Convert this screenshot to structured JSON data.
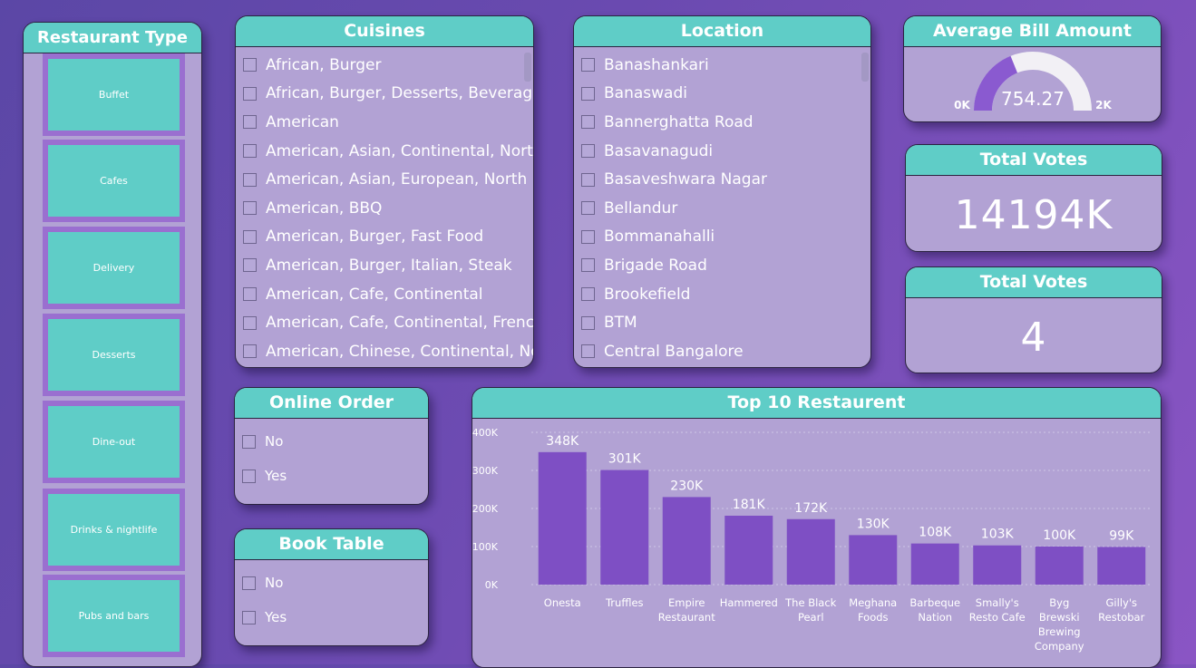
{
  "restaurant_type": {
    "title": "Restaurant Type",
    "items": [
      "Buffet",
      "Cafes",
      "Delivery",
      "Desserts",
      "Dine-out",
      "Drinks & nightlife",
      "Pubs and bars"
    ]
  },
  "cuisines": {
    "title": "Cuisines",
    "items": [
      "African, Burger",
      "African, Burger, Desserts, Beverages...",
      "American",
      "American, Asian, Continental, North...",
      "American, Asian, European, North I...",
      "American, BBQ",
      "American, Burger, Fast Food",
      "American, Burger, Italian, Steak",
      "American, Cafe, Continental",
      "American, Cafe, Continental, French,...",
      "American, Chinese, Continental, Nor..."
    ]
  },
  "location": {
    "title": "Location",
    "items": [
      "Banashankari",
      "Banaswadi",
      "Bannerghatta Road",
      "Basavanagudi",
      "Basaveshwara Nagar",
      "Bellandur",
      "Bommanahalli",
      "Brigade Road",
      "Brookefield",
      "BTM",
      "Central Bangalore"
    ]
  },
  "online_order": {
    "title": "Online Order",
    "items": [
      "No",
      "Yes"
    ]
  },
  "book_table": {
    "title": "Book Table",
    "items": [
      "No",
      "Yes"
    ]
  },
  "avg_bill": {
    "title": "Average Bill Amount",
    "value": "754.27",
    "min": "0K",
    "max": "2K",
    "fraction": 0.377
  },
  "total_votes_1": {
    "title": "Total Votes",
    "value": "14194K"
  },
  "total_votes_2": {
    "title": "Total Votes",
    "value": "4"
  },
  "top10": {
    "title": "Top 10 Restaurent"
  },
  "colors": {
    "teal": "#5fcdc7",
    "purple_bar": "#7e4fc4",
    "card": "#b2a2d4"
  },
  "chart_data": {
    "type": "bar",
    "title": "Top 10 Restaurent",
    "categories": [
      [
        "Onesta"
      ],
      [
        "Truffles"
      ],
      [
        "Empire",
        "Restaurant"
      ],
      [
        "Hammered"
      ],
      [
        "The Black",
        "Pearl"
      ],
      [
        "Meghana",
        "Foods"
      ],
      [
        "Barbeque",
        "Nation"
      ],
      [
        "Smally's",
        "Resto Cafe"
      ],
      [
        "Byg",
        "Brewski",
        "Brewing",
        "Company"
      ],
      [
        "Gilly's",
        "Restobar"
      ]
    ],
    "values": [
      348,
      301,
      230,
      181,
      172,
      130,
      108,
      103,
      100,
      99
    ],
    "data_labels": [
      "348K",
      "301K",
      "230K",
      "181K",
      "172K",
      "130K",
      "108K",
      "103K",
      "100K",
      "99K"
    ],
    "yticks": [
      "0K",
      "100K",
      "200K",
      "300K",
      "400K"
    ],
    "ylim": [
      0,
      400
    ],
    "grid": true
  }
}
